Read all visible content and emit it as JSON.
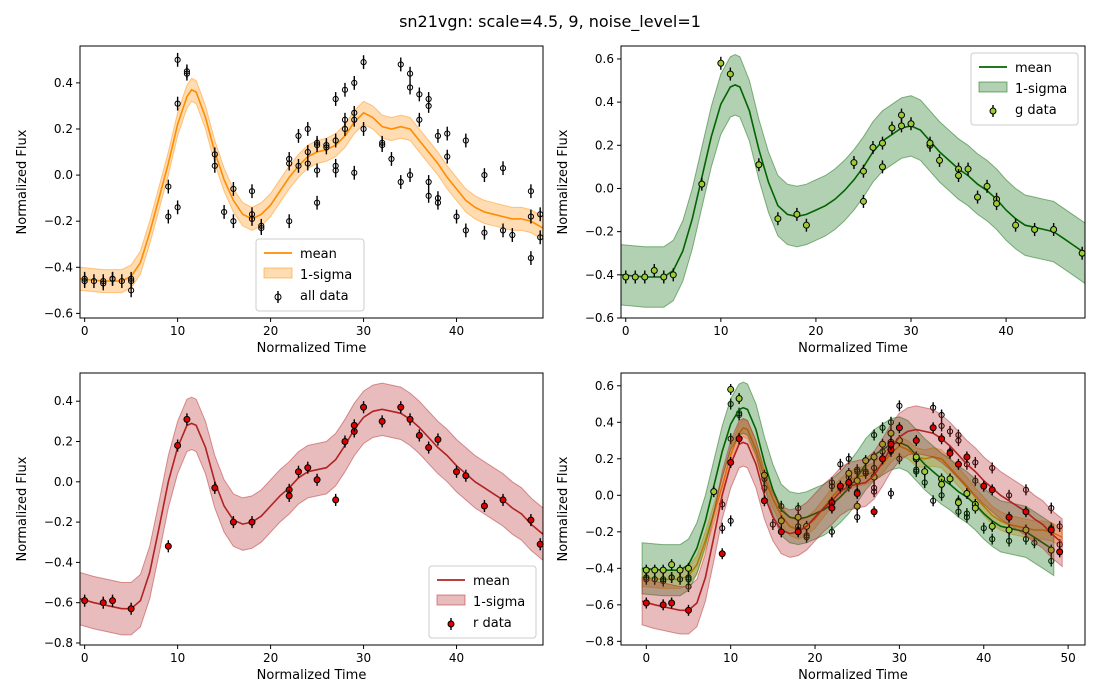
{
  "figure": {
    "title": "sn21vgn: scale=4.5, 9, noise_level=1"
  },
  "colors": {
    "all": "#ff8c00",
    "g": "#006400",
    "r": "#b22222",
    "g_marker": "#9acd32",
    "r_marker": "#dd0000",
    "all_marker": "#000000"
  },
  "chart_data": [
    {
      "type": "line",
      "panel": "top-left",
      "xlabel": "Normalized Time",
      "ylabel": "Normalized Flux",
      "xlim": [
        -0.5,
        49.3
      ],
      "ylim": [
        -0.62,
        0.56
      ],
      "xticks": [
        0,
        10,
        20,
        30,
        40
      ],
      "yticks": [
        -0.6,
        -0.4,
        -0.2,
        0.0,
        0.2,
        0.4
      ],
      "legend": {
        "placement": "lower-center",
        "entries": [
          "mean",
          "1-sigma",
          "all data"
        ]
      },
      "mean": {
        "x": [
          -0.5,
          2,
          4,
          5,
          6,
          7,
          8,
          9,
          10,
          11,
          11.5,
          12,
          13,
          14,
          15,
          16,
          17,
          18,
          19,
          20,
          21,
          22,
          23,
          24,
          25,
          26,
          27,
          28,
          29,
          30,
          31,
          32,
          33,
          34,
          35,
          36,
          37,
          38,
          39,
          40,
          41,
          42,
          43,
          44,
          45,
          46,
          47,
          48,
          49.3
        ],
        "y": [
          -0.45,
          -0.46,
          -0.46,
          -0.44,
          -0.38,
          -0.25,
          -0.1,
          0.05,
          0.22,
          0.34,
          0.37,
          0.36,
          0.25,
          0.1,
          -0.02,
          -0.11,
          -0.17,
          -0.19,
          -0.17,
          -0.13,
          -0.07,
          -0.01,
          0.04,
          0.08,
          0.1,
          0.11,
          0.13,
          0.17,
          0.23,
          0.27,
          0.25,
          0.21,
          0.2,
          0.21,
          0.2,
          0.15,
          0.1,
          0.05,
          -0.01,
          -0.06,
          -0.11,
          -0.14,
          -0.16,
          -0.17,
          -0.18,
          -0.19,
          -0.19,
          -0.2,
          -0.23
        ]
      },
      "sigma": 0.05,
      "series": [
        {
          "name": "all data",
          "x": [
            0,
            0,
            1,
            2,
            2,
            3,
            3,
            4,
            5,
            5,
            5,
            9,
            9,
            10,
            10,
            10,
            11,
            11,
            14,
            14,
            15,
            16,
            16,
            18,
            18,
            18,
            19,
            19,
            22,
            22,
            22,
            23,
            23,
            24,
            24,
            24,
            25,
            25,
            25,
            25,
            26,
            26,
            27,
            27,
            27,
            27,
            28,
            28,
            28,
            29,
            29,
            29,
            29,
            30,
            30,
            32,
            32,
            33,
            34,
            34,
            35,
            35,
            35,
            36,
            36,
            37,
            37,
            37,
            37,
            38,
            38,
            38,
            39,
            39,
            40,
            41,
            41,
            43,
            43,
            45,
            45,
            46,
            48,
            48,
            48,
            49,
            49
          ],
          "y": [
            -0.45,
            -0.46,
            -0.46,
            -0.47,
            -0.46,
            -0.45,
            -0.45,
            -0.46,
            -0.5,
            -0.45,
            -0.46,
            -0.18,
            -0.05,
            0.5,
            0.31,
            -0.14,
            0.44,
            0.45,
            0.09,
            0.04,
            -0.16,
            -0.06,
            -0.2,
            -0.07,
            -0.17,
            -0.19,
            -0.22,
            -0.23,
            0.07,
            0.05,
            -0.2,
            0.17,
            0.04,
            0.1,
            0.05,
            0.2,
            0.13,
            0.14,
            0.02,
            -0.12,
            0.12,
            0.13,
            0.15,
            0.02,
            0.04,
            0.33,
            0.37,
            0.2,
            0.24,
            0.24,
            0.27,
            0.01,
            0.4,
            0.49,
            0.2,
            0.14,
            0.13,
            0.07,
            0.48,
            -0.03,
            0.44,
            0.38,
            0.0,
            0.35,
            0.24,
            0.3,
            0.33,
            -0.03,
            -0.09,
            0.17,
            -0.12,
            -0.1,
            0.18,
            0.08,
            -0.18,
            0.15,
            -0.24,
            0.0,
            -0.25,
            0.03,
            -0.24,
            -0.26,
            -0.07,
            -0.36,
            -0.18,
            -0.17,
            -0.27
          ],
          "yerr": 0.03
        }
      ]
    },
    {
      "type": "line",
      "panel": "top-right",
      "xlabel": "Normalized Time",
      "ylabel": "Normalized Flux",
      "xlim": [
        -0.5,
        48.3
      ],
      "ylim": [
        -0.6,
        0.66
      ],
      "xticks": [
        0,
        10,
        20,
        30,
        40
      ],
      "yticks": [
        -0.6,
        -0.4,
        -0.2,
        0.0,
        0.2,
        0.4,
        0.6
      ],
      "legend": {
        "placement": "top-right",
        "entries": [
          "mean",
          "1-sigma",
          "g data"
        ]
      },
      "mean": {
        "x": [
          -0.5,
          2,
          4,
          5,
          6,
          7,
          8,
          9,
          10,
          11,
          11.5,
          12,
          13,
          14,
          15,
          16,
          17,
          18,
          19,
          20,
          21,
          22,
          23,
          24,
          25,
          26,
          27,
          28,
          29,
          30,
          31,
          32,
          33,
          34,
          35,
          36,
          37,
          38,
          39,
          40,
          41,
          42,
          43,
          44,
          45,
          46,
          47,
          48.3
        ],
        "y": [
          -0.4,
          -0.41,
          -0.41,
          -0.38,
          -0.29,
          -0.14,
          0.05,
          0.24,
          0.39,
          0.47,
          0.48,
          0.47,
          0.36,
          0.18,
          0.03,
          -0.08,
          -0.12,
          -0.13,
          -0.12,
          -0.1,
          -0.08,
          -0.05,
          -0.01,
          0.04,
          0.1,
          0.17,
          0.22,
          0.25,
          0.28,
          0.29,
          0.27,
          0.22,
          0.17,
          0.13,
          0.09,
          0.06,
          0.02,
          -0.01,
          -0.05,
          -0.1,
          -0.14,
          -0.17,
          -0.18,
          -0.19,
          -0.2,
          -0.23,
          -0.26,
          -0.3
        ]
      },
      "sigma": 0.14,
      "series": [
        {
          "name": "g data",
          "x": [
            0,
            1,
            2,
            3,
            4,
            5,
            8,
            10,
            11,
            14,
            16,
            18,
            19,
            24,
            25,
            25,
            26,
            27,
            27,
            28,
            29,
            29,
            30,
            32,
            32,
            33,
            35,
            35,
            36,
            37,
            38,
            39,
            39,
            41,
            43,
            45,
            48
          ],
          "y": [
            -0.41,
            -0.41,
            -0.41,
            -0.38,
            -0.41,
            -0.4,
            0.02,
            0.58,
            0.53,
            0.11,
            -0.14,
            -0.12,
            -0.17,
            0.12,
            0.08,
            -0.06,
            0.19,
            0.1,
            0.21,
            0.28,
            0.29,
            0.34,
            0.3,
            0.2,
            0.21,
            0.13,
            0.09,
            0.06,
            0.09,
            -0.04,
            0.01,
            -0.05,
            -0.07,
            -0.17,
            -0.19,
            -0.19,
            -0.3
          ],
          "yerr": 0.03
        }
      ]
    },
    {
      "type": "line",
      "panel": "bottom-left",
      "xlabel": "Normalized Time",
      "ylabel": "Normalized Flux",
      "xlim": [
        -0.5,
        49.3
      ],
      "ylim": [
        -0.81,
        0.54
      ],
      "xticks": [
        0,
        10,
        20,
        30,
        40
      ],
      "yticks": [
        -0.8,
        -0.6,
        -0.4,
        -0.2,
        0.0,
        0.2,
        0.4
      ],
      "legend": {
        "placement": "lower-right",
        "entries": [
          "mean",
          "1-sigma",
          "r data"
        ]
      },
      "mean": {
        "x": [
          -0.5,
          1,
          2,
          3,
          4,
          5,
          6,
          7,
          8,
          9,
          10,
          11,
          11.5,
          12,
          13,
          14,
          15,
          16,
          17,
          18,
          19,
          20,
          21,
          22,
          23,
          24,
          25,
          26,
          27,
          28,
          29,
          30,
          31,
          32,
          33,
          34,
          35,
          36,
          37,
          38,
          39,
          40,
          41,
          42,
          43,
          44,
          45,
          46,
          47,
          48,
          49.3
        ],
        "y": [
          -0.58,
          -0.6,
          -0.61,
          -0.62,
          -0.63,
          -0.63,
          -0.59,
          -0.45,
          -0.23,
          0.0,
          0.17,
          0.28,
          0.29,
          0.28,
          0.17,
          0.0,
          -0.12,
          -0.19,
          -0.21,
          -0.2,
          -0.17,
          -0.12,
          -0.07,
          -0.03,
          0.02,
          0.05,
          0.06,
          0.07,
          0.11,
          0.18,
          0.26,
          0.32,
          0.35,
          0.36,
          0.35,
          0.34,
          0.31,
          0.27,
          0.22,
          0.17,
          0.13,
          0.08,
          0.04,
          0.0,
          -0.03,
          -0.06,
          -0.09,
          -0.13,
          -0.16,
          -0.21,
          -0.26
        ]
      },
      "sigma": 0.13,
      "series": [
        {
          "name": "r data",
          "x": [
            0,
            2,
            3,
            5,
            9,
            10,
            11,
            14,
            16,
            18,
            22,
            22,
            23,
            24,
            25,
            27,
            28,
            29,
            29,
            30,
            32,
            34,
            35,
            36,
            37,
            38,
            40,
            41,
            43,
            45,
            48,
            49
          ],
          "y": [
            -0.59,
            -0.6,
            -0.59,
            -0.63,
            -0.32,
            0.18,
            0.31,
            -0.03,
            -0.2,
            -0.2,
            -0.04,
            -0.07,
            0.05,
            0.07,
            0.01,
            -0.09,
            0.2,
            0.25,
            0.28,
            0.37,
            0.3,
            0.37,
            0.31,
            0.23,
            0.17,
            0.21,
            0.05,
            0.03,
            -0.12,
            -0.09,
            -0.19,
            -0.31
          ],
          "yerr": 0.03
        }
      ]
    },
    {
      "type": "line",
      "panel": "bottom-right",
      "xlabel": "Normalized Time",
      "ylabel": "Normalized Flux",
      "xlim": [
        -3,
        52
      ],
      "ylim": [
        -0.82,
        0.67
      ],
      "xticks": [
        0,
        10,
        20,
        30,
        40,
        50
      ],
      "yticks": [
        -0.8,
        -0.6,
        -0.4,
        -0.2,
        0.0,
        0.2,
        0.4,
        0.6
      ],
      "legend": {
        "placement": "none",
        "entries": []
      },
      "overlay": [
        "all",
        "g",
        "r"
      ]
    }
  ]
}
